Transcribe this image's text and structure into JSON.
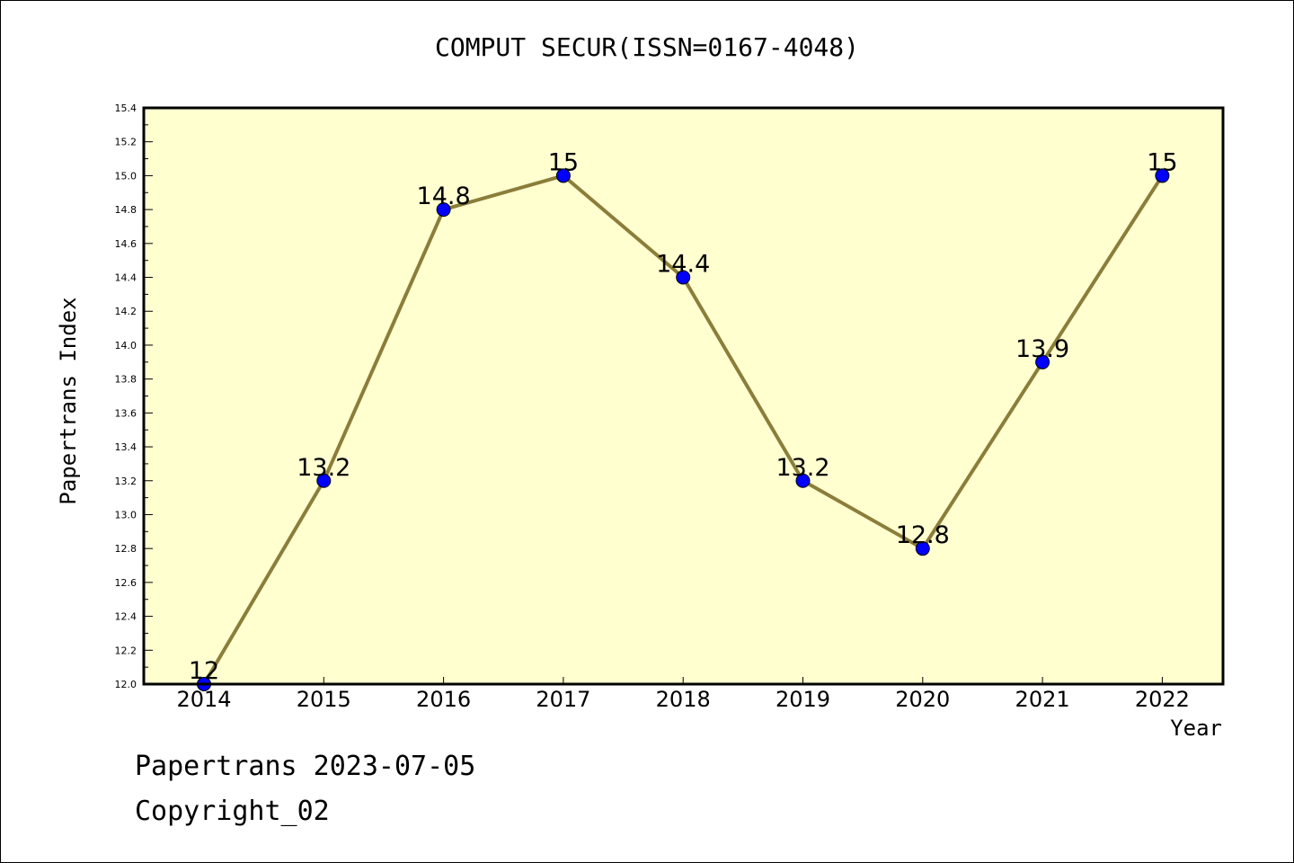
{
  "chart_data": {
    "type": "line",
    "title": "COMPUT SECUR(ISSN=0167-4048)",
    "xlabel": "Year",
    "ylabel": "Papertrans Index",
    "categories": [
      "2014",
      "2015",
      "2016",
      "2017",
      "2018",
      "2019",
      "2020",
      "2021",
      "2022"
    ],
    "series": [
      {
        "values": [
          12,
          13.2,
          14.8,
          15,
          14.4,
          13.2,
          12.8,
          13.9,
          15
        ],
        "labels": [
          "12",
          "13.2",
          "14.8",
          "15",
          "14.4",
          "13.2",
          "12.8",
          "13.9",
          "15"
        ]
      }
    ],
    "ylim": [
      12.0,
      15.4
    ],
    "yticks": [
      "12.0",
      "12.2",
      "12.4",
      "12.6",
      "12.8",
      "13.0",
      "13.2",
      "13.4",
      "13.6",
      "13.8",
      "14.0",
      "14.2",
      "14.4",
      "14.6",
      "14.8",
      "15.0",
      "15.2",
      "15.4"
    ],
    "grid": false,
    "colors": {
      "plot_background": "#ffffd0",
      "line": "#8b7d3a",
      "marker": "#0000ff"
    }
  },
  "footer": {
    "line1": "Papertrans 2023-07-05",
    "line2": "Copyright_02"
  }
}
